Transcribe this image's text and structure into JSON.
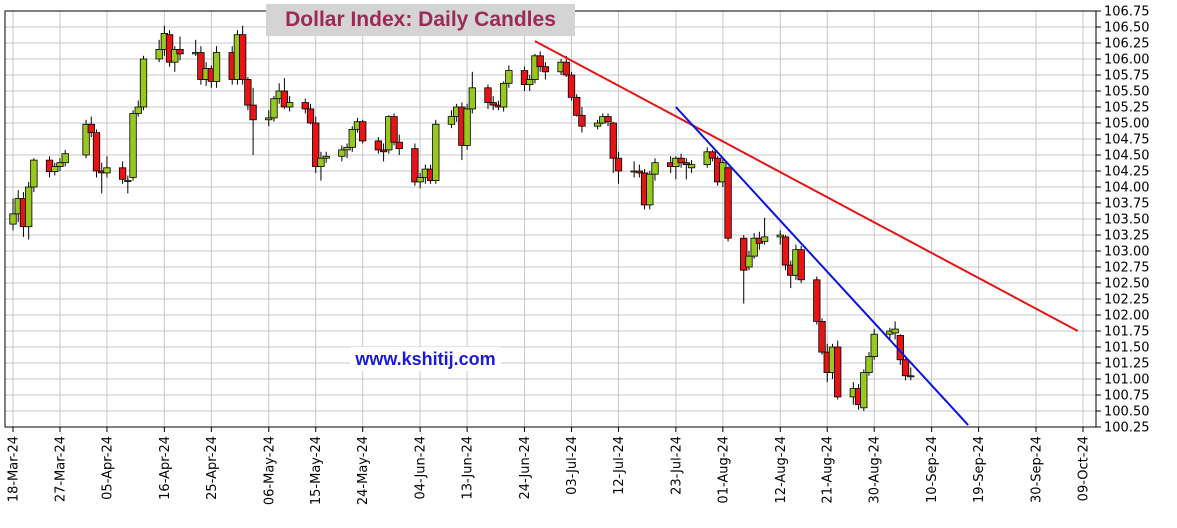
{
  "chart_data": {
    "type": "candlestick",
    "title": "Dollar Index: Daily Candles",
    "watermark": "www.kshitij.com",
    "xlabel": "",
    "ylabel": "",
    "ylim": [
      100.25,
      106.75
    ],
    "y_ticks": [
      100.25,
      100.5,
      100.75,
      101.0,
      101.25,
      101.5,
      101.75,
      102.0,
      102.25,
      102.5,
      102.75,
      103.0,
      103.25,
      103.5,
      103.75,
      104.0,
      104.25,
      104.5,
      104.75,
      105.0,
      105.25,
      105.5,
      105.75,
      106.0,
      106.25,
      106.5,
      106.75
    ],
    "y_tick_labels": [
      "100.25",
      "100.50",
      "100.75",
      "101.00",
      "101.25",
      "101.50",
      "101.75",
      "102.00",
      "102.25",
      "102.50",
      "102.75",
      "103.00",
      "103.25",
      "103.50",
      "103.75",
      "104.00",
      "104.25",
      "104.50",
      "104.75",
      "105.00",
      "105.25",
      "105.50",
      "105.75",
      "106.00",
      "106.25",
      "106.50",
      "106.75"
    ],
    "x_ticks": [
      "18-Mar-24",
      "27-Mar-24",
      "05-Apr-24",
      "16-Apr-24",
      "25-Apr-24",
      "06-May-24",
      "15-May-24",
      "24-May-24",
      "04-Jun-24",
      "13-Jun-24",
      "24-Jun-24",
      "03-Jul-24",
      "12-Jul-24",
      "23-Jul-24",
      "01-Aug-24",
      "12-Aug-24",
      "21-Aug-24",
      "30-Aug-24",
      "10-Sep-24",
      "19-Sep-24",
      "30-Sep-24",
      "09-Oct-24"
    ],
    "grid": true,
    "y_axis_position": "right",
    "colors": {
      "up": "#96c81e",
      "down": "#e61414",
      "grid": "#c8c8c8",
      "title": "#9b2a57",
      "watermark": "#1a1adc",
      "trendline_red": "#e61414",
      "trendline_blue": "#0a14dc"
    },
    "series": [
      {
        "date": "18-Mar-24",
        "open": 103.42,
        "high": 103.82,
        "low": 103.32,
        "close": 103.58
      },
      {
        "date": "19-Mar-24",
        "open": 103.58,
        "high": 103.95,
        "low": 103.45,
        "close": 103.82
      },
      {
        "date": "20-Mar-24",
        "open": 103.82,
        "high": 103.92,
        "low": 103.22,
        "close": 103.38
      },
      {
        "date": "21-Mar-24",
        "open": 103.38,
        "high": 104.08,
        "low": 103.18,
        "close": 104.0
      },
      {
        "date": "22-Mar-24",
        "open": 104.0,
        "high": 104.45,
        "low": 103.92,
        "close": 104.42
      },
      {
        "date": "25-Mar-24",
        "open": 104.42,
        "high": 104.48,
        "low": 104.15,
        "close": 104.24
      },
      {
        "date": "26-Mar-24",
        "open": 104.24,
        "high": 104.38,
        "low": 104.18,
        "close": 104.32
      },
      {
        "date": "27-Mar-24",
        "open": 104.32,
        "high": 104.45,
        "low": 104.25,
        "close": 104.38
      },
      {
        "date": "28-Mar-24",
        "open": 104.38,
        "high": 104.58,
        "low": 104.32,
        "close": 104.52
      },
      {
        "date": "01-Apr-24",
        "open": 104.5,
        "high": 105.05,
        "low": 104.45,
        "close": 104.98
      },
      {
        "date": "02-Apr-24",
        "open": 104.98,
        "high": 105.1,
        "low": 104.78,
        "close": 104.85
      },
      {
        "date": "03-Apr-24",
        "open": 104.85,
        "high": 104.9,
        "low": 104.15,
        "close": 104.25
      },
      {
        "date": "04-Apr-24",
        "open": 104.25,
        "high": 104.38,
        "low": 103.9,
        "close": 104.22
      },
      {
        "date": "05-Apr-24",
        "open": 104.22,
        "high": 104.48,
        "low": 104.15,
        "close": 104.3
      },
      {
        "date": "08-Apr-24",
        "open": 104.3,
        "high": 104.4,
        "low": 104.05,
        "close": 104.12
      },
      {
        "date": "09-Apr-24",
        "open": 104.1,
        "high": 104.18,
        "low": 103.9,
        "close": 104.1
      },
      {
        "date": "10-Apr-24",
        "open": 104.15,
        "high": 105.2,
        "low": 104.1,
        "close": 105.15
      },
      {
        "date": "11-Apr-24",
        "open": 105.15,
        "high": 105.35,
        "low": 105.1,
        "close": 105.25
      },
      {
        "date": "12-Apr-24",
        "open": 105.25,
        "high": 106.05,
        "low": 105.2,
        "close": 106.0
      },
      {
        "date": "15-Apr-24",
        "open": 106.0,
        "high": 106.3,
        "low": 105.95,
        "close": 106.15
      },
      {
        "date": "16-Apr-24",
        "open": 106.15,
        "high": 106.52,
        "low": 106.05,
        "close": 106.4
      },
      {
        "date": "17-Apr-24",
        "open": 106.38,
        "high": 106.45,
        "low": 105.88,
        "close": 105.95
      },
      {
        "date": "18-Apr-24",
        "open": 105.95,
        "high": 106.2,
        "low": 105.8,
        "close": 106.15
      },
      {
        "date": "19-Apr-24",
        "open": 106.15,
        "high": 106.35,
        "low": 105.98,
        "close": 106.08
      },
      {
        "date": "22-Apr-24",
        "open": 106.08,
        "high": 106.3,
        "low": 106.05,
        "close": 106.1
      },
      {
        "date": "23-Apr-24",
        "open": 106.1,
        "high": 106.2,
        "low": 105.6,
        "close": 105.68
      },
      {
        "date": "24-Apr-24",
        "open": 105.68,
        "high": 105.95,
        "low": 105.58,
        "close": 105.85
      },
      {
        "date": "25-Apr-24",
        "open": 105.85,
        "high": 105.9,
        "low": 105.55,
        "close": 105.65
      },
      {
        "date": "26-Apr-24",
        "open": 105.65,
        "high": 106.2,
        "low": 105.55,
        "close": 106.1
      },
      {
        "date": "29-Apr-24",
        "open": 106.1,
        "high": 106.2,
        "low": 105.6,
        "close": 105.68
      },
      {
        "date": "30-Apr-24",
        "open": 105.68,
        "high": 106.45,
        "low": 105.6,
        "close": 106.38
      },
      {
        "date": "01-May-24",
        "open": 106.38,
        "high": 106.52,
        "low": 105.6,
        "close": 105.68
      },
      {
        "date": "02-May-24",
        "open": 105.68,
        "high": 105.72,
        "low": 105.2,
        "close": 105.28
      },
      {
        "date": "03-May-24",
        "open": 105.28,
        "high": 105.55,
        "low": 104.5,
        "close": 105.05
      },
      {
        "date": "06-May-24",
        "open": 105.05,
        "high": 105.2,
        "low": 104.95,
        "close": 105.08
      },
      {
        "date": "07-May-24",
        "open": 105.08,
        "high": 105.42,
        "low": 105.02,
        "close": 105.38
      },
      {
        "date": "08-May-24",
        "open": 105.38,
        "high": 105.62,
        "low": 105.3,
        "close": 105.5
      },
      {
        "date": "09-May-24",
        "open": 105.5,
        "high": 105.7,
        "low": 105.22,
        "close": 105.25
      },
      {
        "date": "10-May-24",
        "open": 105.25,
        "high": 105.42,
        "low": 105.18,
        "close": 105.32
      },
      {
        "date": "13-May-24",
        "open": 105.32,
        "high": 105.38,
        "low": 105.15,
        "close": 105.22
      },
      {
        "date": "14-May-24",
        "open": 105.22,
        "high": 105.3,
        "low": 104.98,
        "close": 105.0
      },
      {
        "date": "15-May-24",
        "open": 105.0,
        "high": 105.1,
        "low": 104.22,
        "close": 104.32
      },
      {
        "date": "16-May-24",
        "open": 104.32,
        "high": 104.55,
        "low": 104.1,
        "close": 104.45
      },
      {
        "date": "17-May-24",
        "open": 104.45,
        "high": 104.55,
        "low": 104.38,
        "close": 104.48
      },
      {
        "date": "20-May-24",
        "open": 104.48,
        "high": 104.65,
        "low": 104.4,
        "close": 104.58
      },
      {
        "date": "21-May-24",
        "open": 104.58,
        "high": 104.68,
        "low": 104.45,
        "close": 104.62
      },
      {
        "date": "22-May-24",
        "open": 104.62,
        "high": 104.95,
        "low": 104.55,
        "close": 104.9
      },
      {
        "date": "23-May-24",
        "open": 104.9,
        "high": 105.08,
        "low": 104.85,
        "close": 105.02
      },
      {
        "date": "24-May-24",
        "open": 105.02,
        "high": 105.05,
        "low": 104.68,
        "close": 104.72
      },
      {
        "date": "27-May-24",
        "open": 104.72,
        "high": 104.78,
        "low": 104.52,
        "close": 104.58
      },
      {
        "date": "28-May-24",
        "open": 104.58,
        "high": 104.68,
        "low": 104.4,
        "close": 104.55
      },
      {
        "date": "29-May-24",
        "open": 104.58,
        "high": 105.12,
        "low": 104.52,
        "close": 105.1
      },
      {
        "date": "30-May-24",
        "open": 105.1,
        "high": 105.15,
        "low": 104.65,
        "close": 104.7
      },
      {
        "date": "31-May-24",
        "open": 104.7,
        "high": 104.82,
        "low": 104.5,
        "close": 104.6
      },
      {
        "date": "03-Jun-24",
        "open": 104.6,
        "high": 104.68,
        "low": 104.02,
        "close": 104.08
      },
      {
        "date": "04-Jun-24",
        "open": 104.08,
        "high": 104.22,
        "low": 103.98,
        "close": 104.15
      },
      {
        "date": "05-Jun-24",
        "open": 104.15,
        "high": 104.35,
        "low": 104.05,
        "close": 104.28
      },
      {
        "date": "06-Jun-24",
        "open": 104.28,
        "high": 104.35,
        "low": 104.05,
        "close": 104.1
      },
      {
        "date": "07-Jun-24",
        "open": 104.1,
        "high": 105.05,
        "low": 104.05,
        "close": 104.98
      },
      {
        "date": "10-Jun-24",
        "open": 104.98,
        "high": 105.2,
        "low": 104.92,
        "close": 105.1
      },
      {
        "date": "11-Jun-24",
        "open": 105.1,
        "high": 105.3,
        "low": 105.02,
        "close": 105.25
      },
      {
        "date": "12-Jun-24",
        "open": 105.25,
        "high": 105.32,
        "low": 104.42,
        "close": 104.65
      },
      {
        "date": "13-Jun-24",
        "open": 104.65,
        "high": 105.3,
        "low": 104.58,
        "close": 105.22
      },
      {
        "date": "14-Jun-24",
        "open": 105.22,
        "high": 105.8,
        "low": 105.15,
        "close": 105.55
      },
      {
        "date": "17-Jun-24",
        "open": 105.55,
        "high": 105.6,
        "low": 105.22,
        "close": 105.32
      },
      {
        "date": "18-Jun-24",
        "open": 105.32,
        "high": 105.42,
        "low": 105.2,
        "close": 105.28
      },
      {
        "date": "19-Jun-24",
        "open": 105.28,
        "high": 105.35,
        "low": 105.2,
        "close": 105.25
      },
      {
        "date": "20-Jun-24",
        "open": 105.25,
        "high": 105.65,
        "low": 105.18,
        "close": 105.62
      },
      {
        "date": "21-Jun-24",
        "open": 105.62,
        "high": 105.9,
        "low": 105.55,
        "close": 105.82
      },
      {
        "date": "24-Jun-24",
        "open": 105.82,
        "high": 105.88,
        "low": 105.5,
        "close": 105.6
      },
      {
        "date": "25-Jun-24",
        "open": 105.6,
        "high": 105.75,
        "low": 105.5,
        "close": 105.68
      },
      {
        "date": "26-Jun-24",
        "open": 105.68,
        "high": 106.08,
        "low": 105.62,
        "close": 106.05
      },
      {
        "date": "27-Jun-24",
        "open": 106.05,
        "high": 106.12,
        "low": 105.8,
        "close": 105.88
      },
      {
        "date": "28-Jun-24",
        "open": 105.88,
        "high": 105.95,
        "low": 105.68,
        "close": 105.8
      },
      {
        "date": "01-Jul-24",
        "open": 105.8,
        "high": 106.0,
        "low": 105.75,
        "close": 105.95
      },
      {
        "date": "02-Jul-24",
        "open": 105.95,
        "high": 106.05,
        "low": 105.72,
        "close": 105.75
      },
      {
        "date": "03-Jul-24",
        "open": 105.75,
        "high": 105.8,
        "low": 105.35,
        "close": 105.4
      },
      {
        "date": "04-Jul-24",
        "open": 105.4,
        "high": 105.45,
        "low": 105.1,
        "close": 105.12
      },
      {
        "date": "05-Jul-24",
        "open": 105.12,
        "high": 105.25,
        "low": 104.85,
        "close": 104.95
      },
      {
        "date": "08-Jul-24",
        "open": 104.95,
        "high": 105.05,
        "low": 104.9,
        "close": 105.0
      },
      {
        "date": "09-Jul-24",
        "open": 105.0,
        "high": 105.15,
        "low": 104.98,
        "close": 105.1
      },
      {
        "date": "10-Jul-24",
        "open": 105.1,
        "high": 105.15,
        "low": 104.95,
        "close": 105.02
      },
      {
        "date": "11-Jul-24",
        "open": 105.0,
        "high": 105.02,
        "low": 104.22,
        "close": 104.45
      },
      {
        "date": "12-Jul-24",
        "open": 104.45,
        "high": 104.55,
        "low": 104.05,
        "close": 104.25
      },
      {
        "date": "15-Jul-24",
        "open": 104.25,
        "high": 104.4,
        "low": 104.15,
        "close": 104.25
      },
      {
        "date": "16-Jul-24",
        "open": 104.25,
        "high": 104.35,
        "low": 104.15,
        "close": 104.22
      },
      {
        "date": "17-Jul-24",
        "open": 104.22,
        "high": 104.28,
        "low": 103.65,
        "close": 103.72
      },
      {
        "date": "18-Jul-24",
        "open": 103.72,
        "high": 104.25,
        "low": 103.65,
        "close": 104.2
      },
      {
        "date": "19-Jul-24",
        "open": 104.2,
        "high": 104.45,
        "low": 104.1,
        "close": 104.38
      },
      {
        "date": "22-Jul-24",
        "open": 104.38,
        "high": 104.48,
        "low": 104.22,
        "close": 104.32
      },
      {
        "date": "23-Jul-24",
        "open": 104.32,
        "high": 104.48,
        "low": 104.12,
        "close": 104.45
      },
      {
        "date": "24-Jul-24",
        "open": 104.45,
        "high": 104.52,
        "low": 104.3,
        "close": 104.38
      },
      {
        "date": "25-Jul-24",
        "open": 104.38,
        "high": 104.45,
        "low": 104.12,
        "close": 104.35
      },
      {
        "date": "26-Jul-24",
        "open": 104.3,
        "high": 104.42,
        "low": 104.22,
        "close": 104.35
      },
      {
        "date": "29-Jul-24",
        "open": 104.35,
        "high": 104.62,
        "low": 104.3,
        "close": 104.55
      },
      {
        "date": "30-Jul-24",
        "open": 104.55,
        "high": 104.58,
        "low": 104.4,
        "close": 104.45
      },
      {
        "date": "31-Jul-24",
        "open": 104.45,
        "high": 104.48,
        "low": 104.02,
        "close": 104.08
      },
      {
        "date": "01-Aug-24",
        "open": 104.08,
        "high": 104.45,
        "low": 104.0,
        "close": 104.38
      },
      {
        "date": "02-Aug-24",
        "open": 104.3,
        "high": 104.32,
        "low": 103.15,
        "close": 103.2
      },
      {
        "date": "05-Aug-24",
        "open": 103.2,
        "high": 103.25,
        "low": 102.18,
        "close": 102.7
      },
      {
        "date": "06-Aug-24",
        "open": 102.75,
        "high": 103.0,
        "low": 102.7,
        "close": 102.92
      },
      {
        "date": "07-Aug-24",
        "open": 102.92,
        "high": 103.28,
        "low": 102.88,
        "close": 103.2
      },
      {
        "date": "08-Aug-24",
        "open": 103.2,
        "high": 103.3,
        "low": 103.02,
        "close": 103.12
      },
      {
        "date": "09-Aug-24",
        "open": 103.15,
        "high": 103.52,
        "low": 103.1,
        "close": 103.22
      },
      {
        "date": "12-Aug-24",
        "open": 103.22,
        "high": 103.32,
        "low": 103.1,
        "close": 103.25
      },
      {
        "date": "13-Aug-24",
        "open": 103.22,
        "high": 103.25,
        "low": 102.7,
        "close": 102.78
      },
      {
        "date": "14-Aug-24",
        "open": 102.78,
        "high": 102.85,
        "low": 102.42,
        "close": 102.62
      },
      {
        "date": "15-Aug-24",
        "open": 102.62,
        "high": 103.1,
        "low": 102.55,
        "close": 103.02
      },
      {
        "date": "16-Aug-24",
        "open": 103.02,
        "high": 103.08,
        "low": 102.5,
        "close": 102.55
      },
      {
        "date": "19-Aug-24",
        "open": 102.55,
        "high": 102.6,
        "low": 101.85,
        "close": 101.9
      },
      {
        "date": "20-Aug-24",
        "open": 101.9,
        "high": 101.95,
        "low": 101.38,
        "close": 101.42
      },
      {
        "date": "21-Aug-24",
        "open": 101.42,
        "high": 101.55,
        "low": 100.95,
        "close": 101.1
      },
      {
        "date": "22-Aug-24",
        "open": 101.1,
        "high": 101.55,
        "low": 101.0,
        "close": 101.5
      },
      {
        "date": "23-Aug-24",
        "open": 101.5,
        "high": 101.6,
        "low": 100.68,
        "close": 100.72
      },
      {
        "date": "26-Aug-24",
        "open": 100.72,
        "high": 100.95,
        "low": 100.6,
        "close": 100.85
      },
      {
        "date": "27-Aug-24",
        "open": 100.85,
        "high": 100.92,
        "low": 100.52,
        "close": 100.6
      },
      {
        "date": "28-Aug-24",
        "open": 100.55,
        "high": 101.15,
        "low": 100.5,
        "close": 101.1
      },
      {
        "date": "29-Aug-24",
        "open": 101.1,
        "high": 101.42,
        "low": 101.05,
        "close": 101.35
      },
      {
        "date": "30-Aug-24",
        "open": 101.35,
        "high": 101.78,
        "low": 101.3,
        "close": 101.7
      },
      {
        "date": "02-Sep-24",
        "open": 101.7,
        "high": 101.8,
        "low": 101.62,
        "close": 101.75
      },
      {
        "date": "03-Sep-24",
        "open": 101.72,
        "high": 101.9,
        "low": 101.62,
        "close": 101.78
      },
      {
        "date": "04-Sep-24",
        "open": 101.68,
        "high": 101.7,
        "low": 101.22,
        "close": 101.3
      },
      {
        "date": "05-Sep-24",
        "open": 101.3,
        "high": 101.32,
        "low": 100.98,
        "close": 101.05
      },
      {
        "date": "06-Sep-24",
        "open": 101.05,
        "high": 101.18,
        "low": 100.98,
        "close": 101.05
      }
    ],
    "trendlines": [
      {
        "color": "red",
        "from": {
          "date": "26-Jun-24",
          "value": 106.28
        },
        "to": {
          "date": "08-Oct-24",
          "value": 101.75
        }
      },
      {
        "date_note": "",
        "color": "blue",
        "from": {
          "date": "23-Jul-24",
          "value": 105.25
        },
        "to": {
          "date": "17-Sep-24",
          "value": 100.28
        }
      }
    ]
  }
}
